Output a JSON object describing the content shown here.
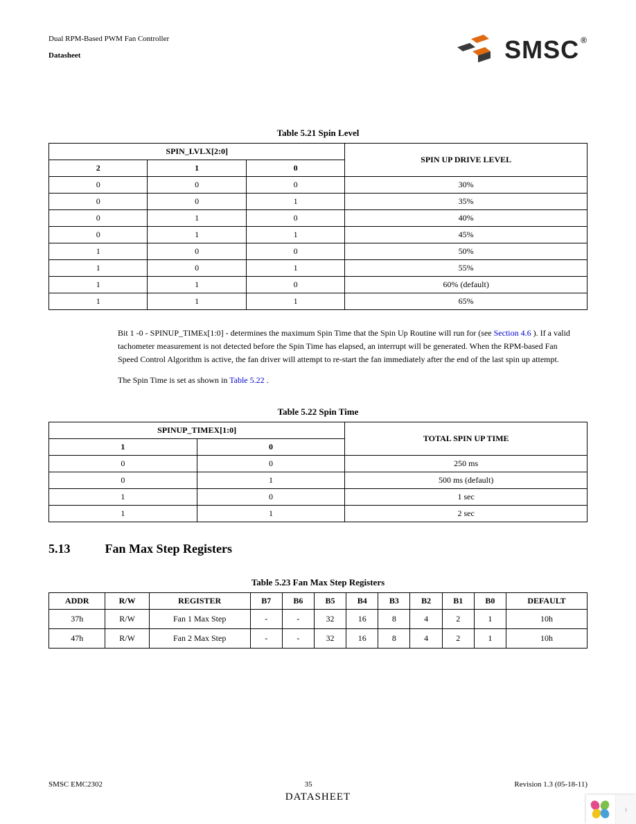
{
  "header": {
    "title": "Dual RPM-Based PWM Fan Controller",
    "subtitle": "Datasheet",
    "brand": "SMSC",
    "reg": "®",
    "logo_colors": {
      "orange": "#e06a10",
      "dark": "#3a3a3a"
    }
  },
  "colors": {
    "link": "#0000cc",
    "text": "#000000",
    "border": "#000000",
    "background": "#ffffff"
  },
  "table521": {
    "title": "Table 5.21  Spin Level",
    "group_header": "SPIN_LVLX[2:0]",
    "cols": [
      "2",
      "1",
      "0"
    ],
    "right_header": "SPIN UP DRIVE LEVEL",
    "rows": [
      [
        "0",
        "0",
        "0",
        "30%"
      ],
      [
        "0",
        "0",
        "1",
        "35%"
      ],
      [
        "0",
        "1",
        "0",
        "40%"
      ],
      [
        "0",
        "1",
        "1",
        "45%"
      ],
      [
        "1",
        "0",
        "0",
        "50%"
      ],
      [
        "1",
        "0",
        "1",
        "55%"
      ],
      [
        "1",
        "1",
        "0",
        "60% (default)"
      ],
      [
        "1",
        "1",
        "1",
        "65%"
      ]
    ]
  },
  "para1": {
    "t1": "Bit 1 -0 - SPINUP_TIMEx[1:0] - determines the maximum Spin Time that the Spin Up Routine will run for (see ",
    "link1": "Section 4.6",
    "t2": "). If a valid tachometer measurement is not detected before the Spin Time has elapsed, an interrupt will be generated. When the RPM-based Fan Speed Control Algorithm is active, the fan driver will attempt to re-start the fan immediately after the end of the last spin up attempt."
  },
  "para2": {
    "t1": "The Spin Time is set as shown in ",
    "link1": "Table 5.22",
    "t2": "."
  },
  "table522": {
    "title": "Table 5.22  Spin Time",
    "group_header": "SPINUP_TIMEX[1:0]",
    "cols": [
      "1",
      "0"
    ],
    "right_header": "TOTAL SPIN UP TIME",
    "rows": [
      [
        "0",
        "0",
        "250 ms"
      ],
      [
        "0",
        "1",
        "500 ms (default)"
      ],
      [
        "1",
        "0",
        "1 sec"
      ],
      [
        "1",
        "1",
        "2 sec"
      ]
    ]
  },
  "section": {
    "num": "5.13",
    "title": "Fan Max Step Registers"
  },
  "table523": {
    "title": "Table 5.23  Fan Max Step Registers",
    "headers": [
      "ADDR",
      "R/W",
      "REGISTER",
      "B7",
      "B6",
      "B5",
      "B4",
      "B3",
      "B2",
      "B1",
      "B0",
      "DEFAULT"
    ],
    "rows": [
      [
        "37h",
        "R/W",
        "Fan 1 Max Step",
        "-",
        "-",
        "32",
        "16",
        "8",
        "4",
        "2",
        "1",
        "10h"
      ],
      [
        "47h",
        "R/W",
        "Fan 2 Max Step",
        "-",
        "-",
        "32",
        "16",
        "8",
        "4",
        "2",
        "1",
        "10h"
      ]
    ]
  },
  "footer": {
    "left": "SMSC EMC2302",
    "center_num": "35",
    "right": "Revision 1.3 (05-18-11)",
    "ds": "DATASHEET"
  },
  "widget": {
    "petals": [
      "#e34b8a",
      "#7cc24a",
      "#f0c419",
      "#4aa0d8"
    ],
    "chevron": "›"
  }
}
